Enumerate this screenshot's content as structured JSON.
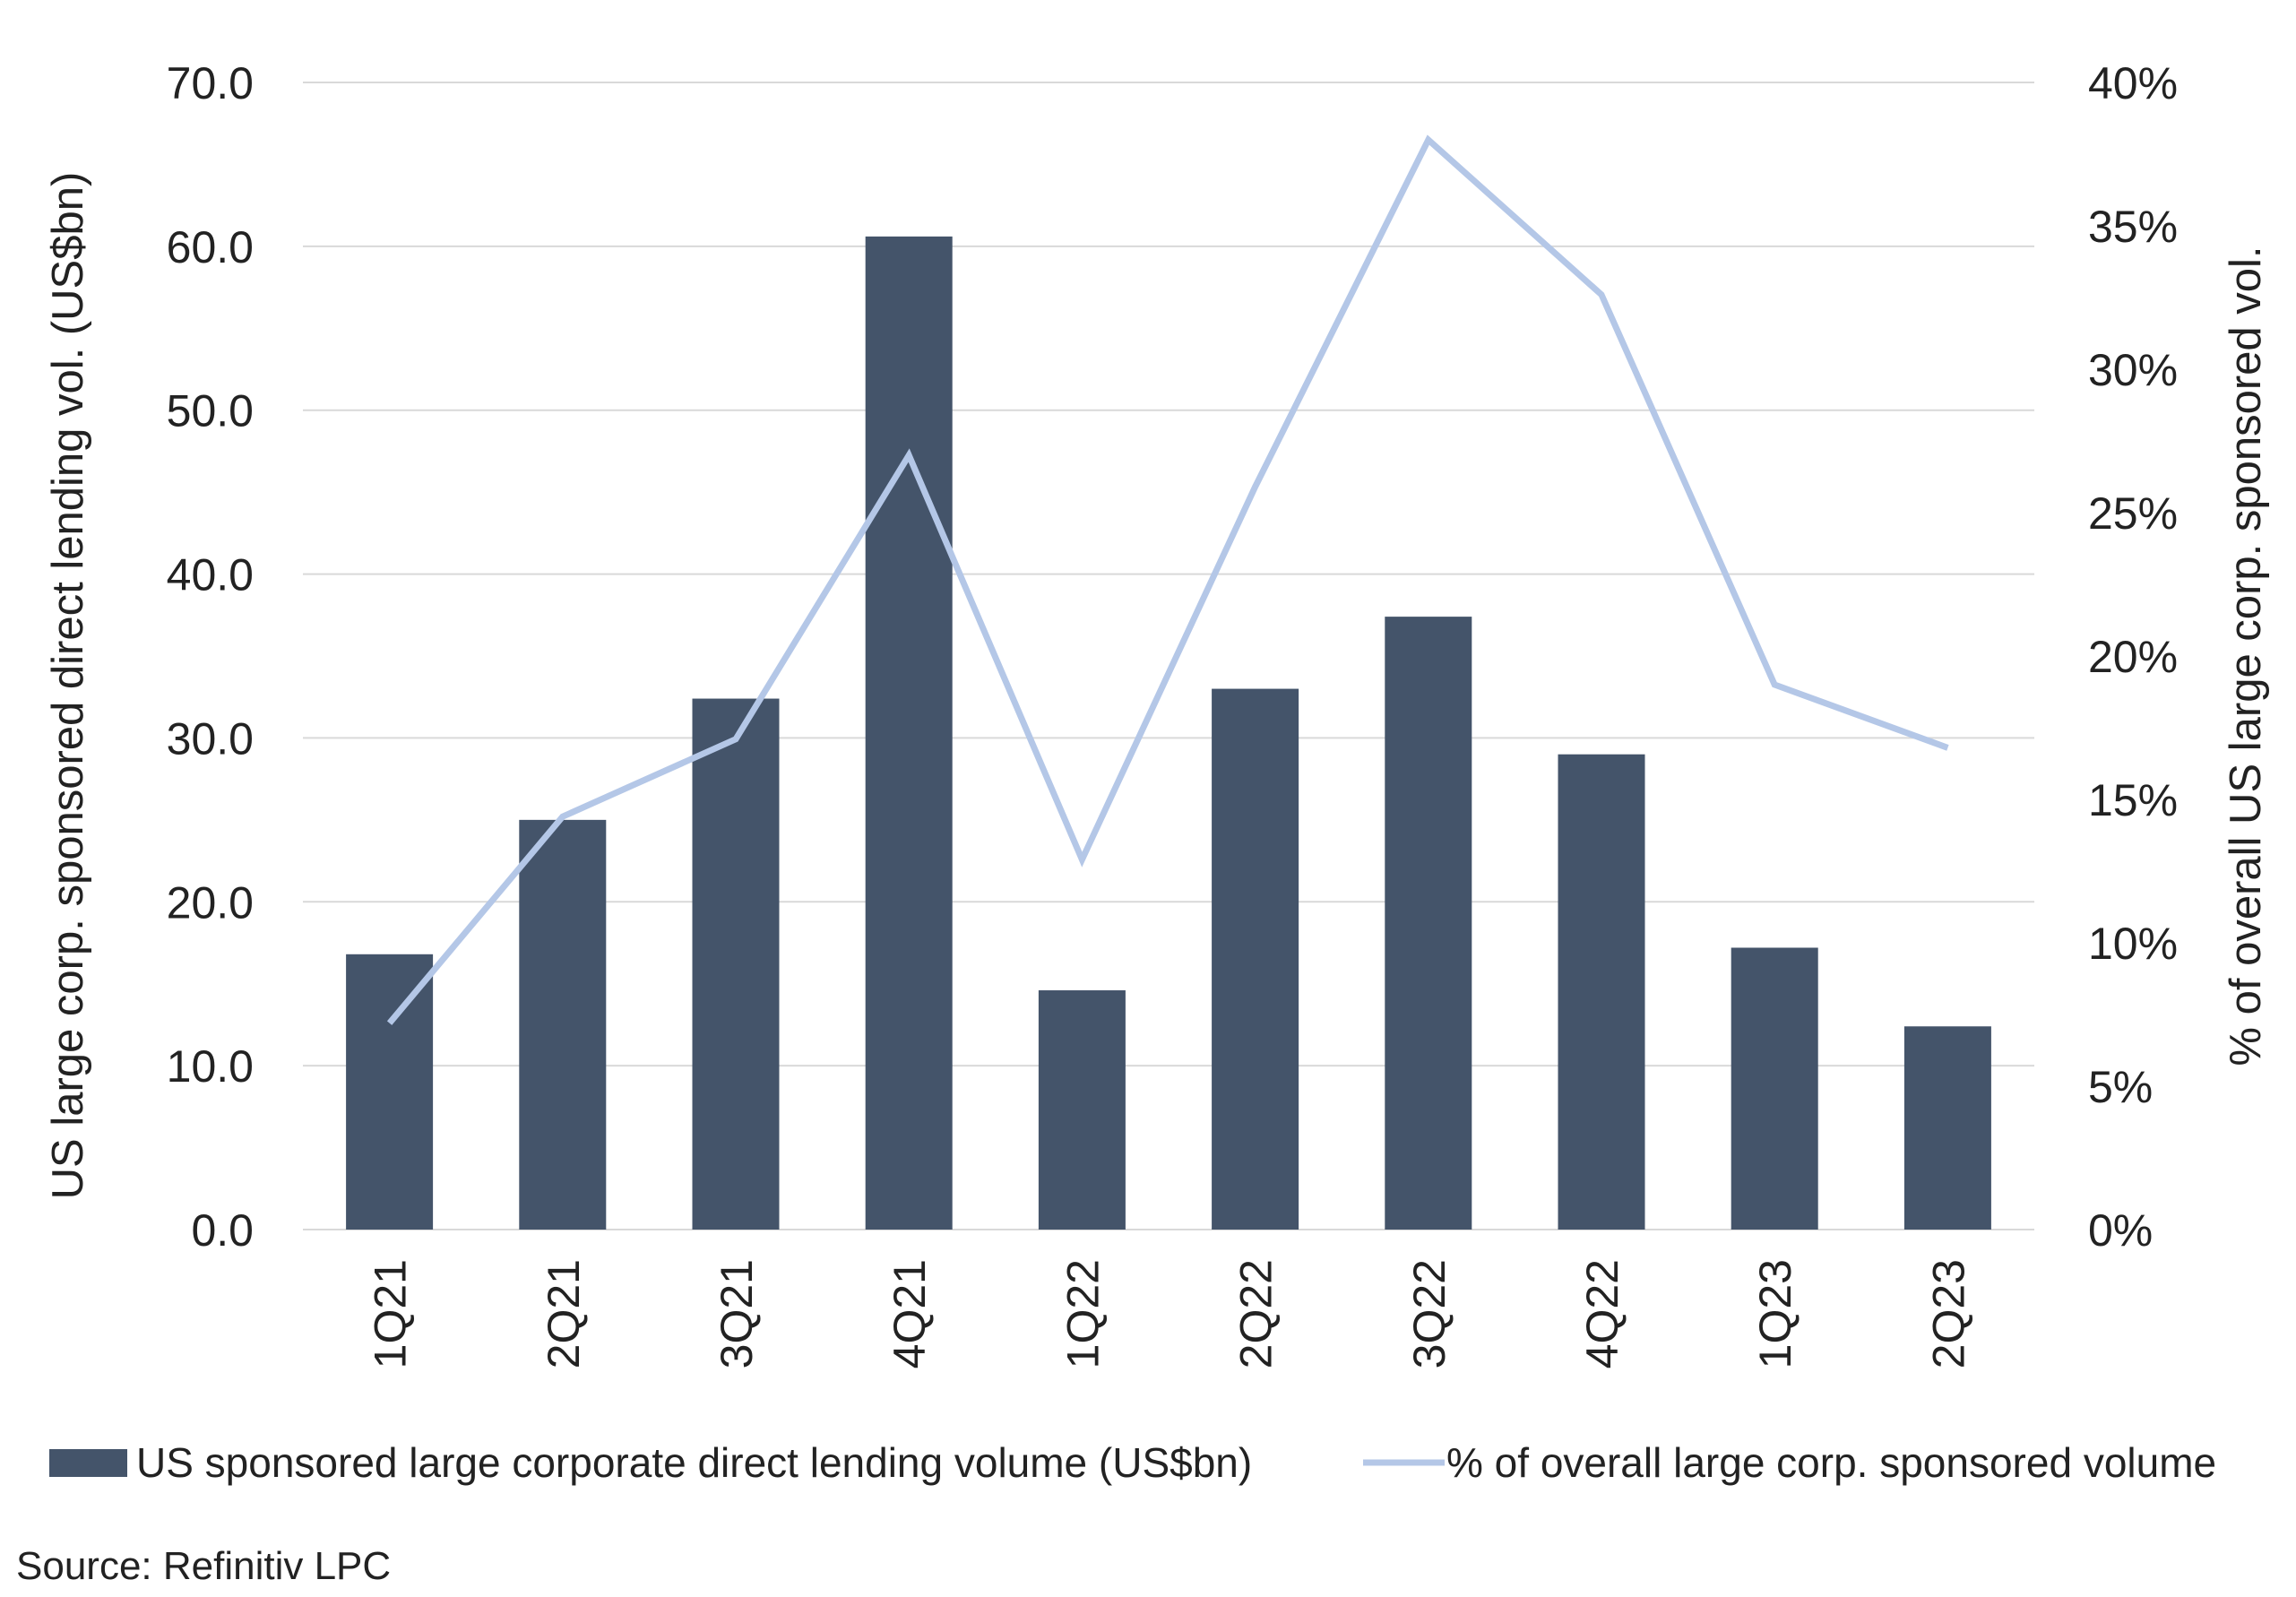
{
  "chart_data": {
    "type": "bar",
    "categories": [
      "1Q21",
      "2Q21",
      "3Q21",
      "4Q21",
      "1Q22",
      "2Q22",
      "3Q22",
      "4Q22",
      "1Q23",
      "2Q23"
    ],
    "series": [
      {
        "name": "US sponsored large corporate direct lending volume (US$bn)",
        "type": "bar",
        "axis": "left",
        "color": "#44546a",
        "values": [
          16.8,
          25.0,
          32.4,
          60.6,
          14.6,
          33.0,
          37.4,
          29.0,
          17.2,
          12.4
        ]
      },
      {
        "name": "% of overall large corp. sponsored volume",
        "type": "line",
        "axis": "right",
        "color": "#b4c7e7",
        "values": [
          7.2,
          14.4,
          17.1,
          27.0,
          12.9,
          25.9,
          38.0,
          32.6,
          19.0,
          16.8
        ]
      }
    ],
    "ylabel": "US large corp. sponsored direct lending vol. (US$bn)",
    "y2label": "% of overall US large corp. sponsored  vol.",
    "ylim": [
      0,
      70
    ],
    "y2lim": [
      0,
      40
    ],
    "yticks": [
      "0.0",
      "10.0",
      "20.0",
      "30.0",
      "40.0",
      "50.0",
      "60.0",
      "70.0"
    ],
    "y2ticks": [
      "0%",
      "5%",
      "10%",
      "15%",
      "20%",
      "25%",
      "30%",
      "35%",
      "40%"
    ],
    "gridlines": true,
    "gridColor": "#d9d9d9",
    "legend": "bottom"
  },
  "source": "Source: Refinitiv LPC"
}
